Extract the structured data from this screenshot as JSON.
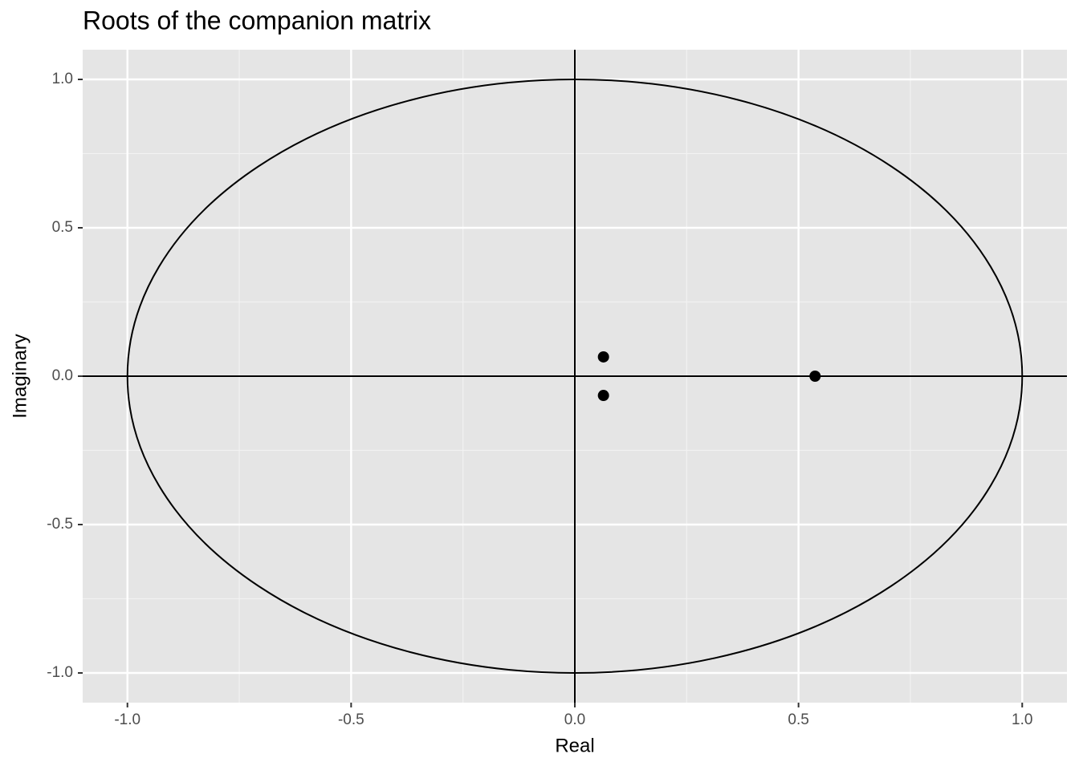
{
  "chart_data": {
    "type": "scatter",
    "title": "Roots of the companion matrix",
    "x_label": "Real",
    "y_label": "Imaginary",
    "x": [
      0.064,
      0.064,
      0.537
    ],
    "y": [
      0.065,
      -0.065,
      0
    ],
    "color": "#000000",
    "xlim": [
      -1.1,
      1.1
    ],
    "ylim": [
      -1.1,
      1.1
    ],
    "xticks": [
      {
        "value": -1,
        "label": "-1.0"
      },
      -0.5,
      {
        "value": 0,
        "label": "0.0"
      },
      0.5,
      {
        "value": 1,
        "label": "1.0"
      }
    ],
    "yticks": [
      {
        "value": -1,
        "label": "-1.0"
      },
      -0.5,
      {
        "value": 0,
        "label": "0.0"
      },
      0.5,
      {
        "value": 1,
        "label": "1.0"
      }
    ],
    "minor_xticks": [
      -0.75,
      -0.25,
      0.25,
      0.75
    ],
    "minor_yticks": [
      -0.75,
      -0.25,
      0.25,
      0.75
    ],
    "grid": true,
    "reference_circle_radius": 1,
    "hline": 0,
    "vline": 0
  }
}
